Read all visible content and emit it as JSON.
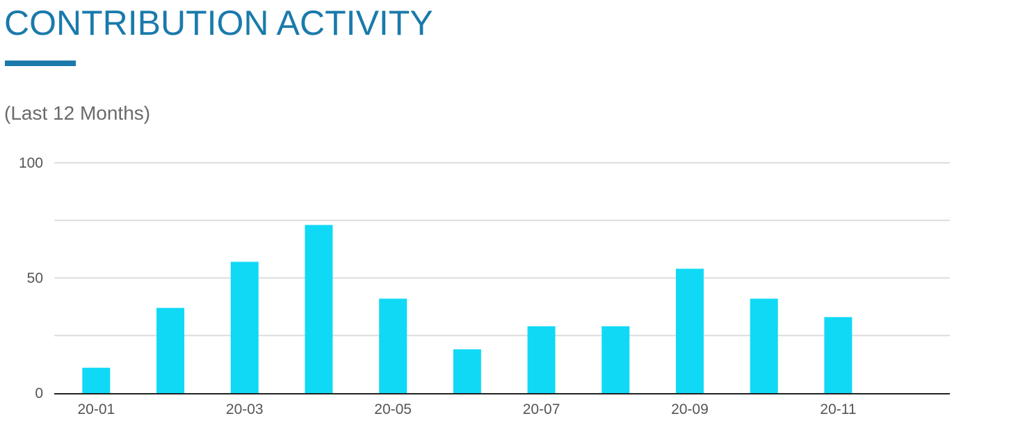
{
  "header": {
    "title": "CONTRIBUTION ACTIVITY",
    "subtitle": "(Last 12 Months)"
  },
  "chart_data": {
    "type": "bar",
    "title": "CONTRIBUTION ACTIVITY",
    "subtitle": "(Last 12 Months)",
    "xlabel": "",
    "ylabel": "",
    "categories": [
      "20-01",
      "20-02",
      "20-03",
      "20-04",
      "20-05",
      "20-06",
      "20-07",
      "20-08",
      "20-09",
      "20-10",
      "20-11",
      "20-12"
    ],
    "x_tick_labels": [
      "20-01",
      "20-03",
      "20-05",
      "20-07",
      "20-09",
      "20-11"
    ],
    "values": [
      11,
      37,
      57,
      73,
      41,
      19,
      29,
      29,
      54,
      41,
      33,
      0
    ],
    "ylim": [
      0,
      100
    ],
    "y_ticks": [
      0,
      25,
      50,
      75,
      100
    ],
    "y_tick_labels": [
      "0",
      "50",
      "100"
    ],
    "grid": true,
    "legend": "none",
    "bar_color": "#10d9f6",
    "title_color": "#1a7aab",
    "grid_color": "#dddddd",
    "axis_color": "#222222"
  }
}
